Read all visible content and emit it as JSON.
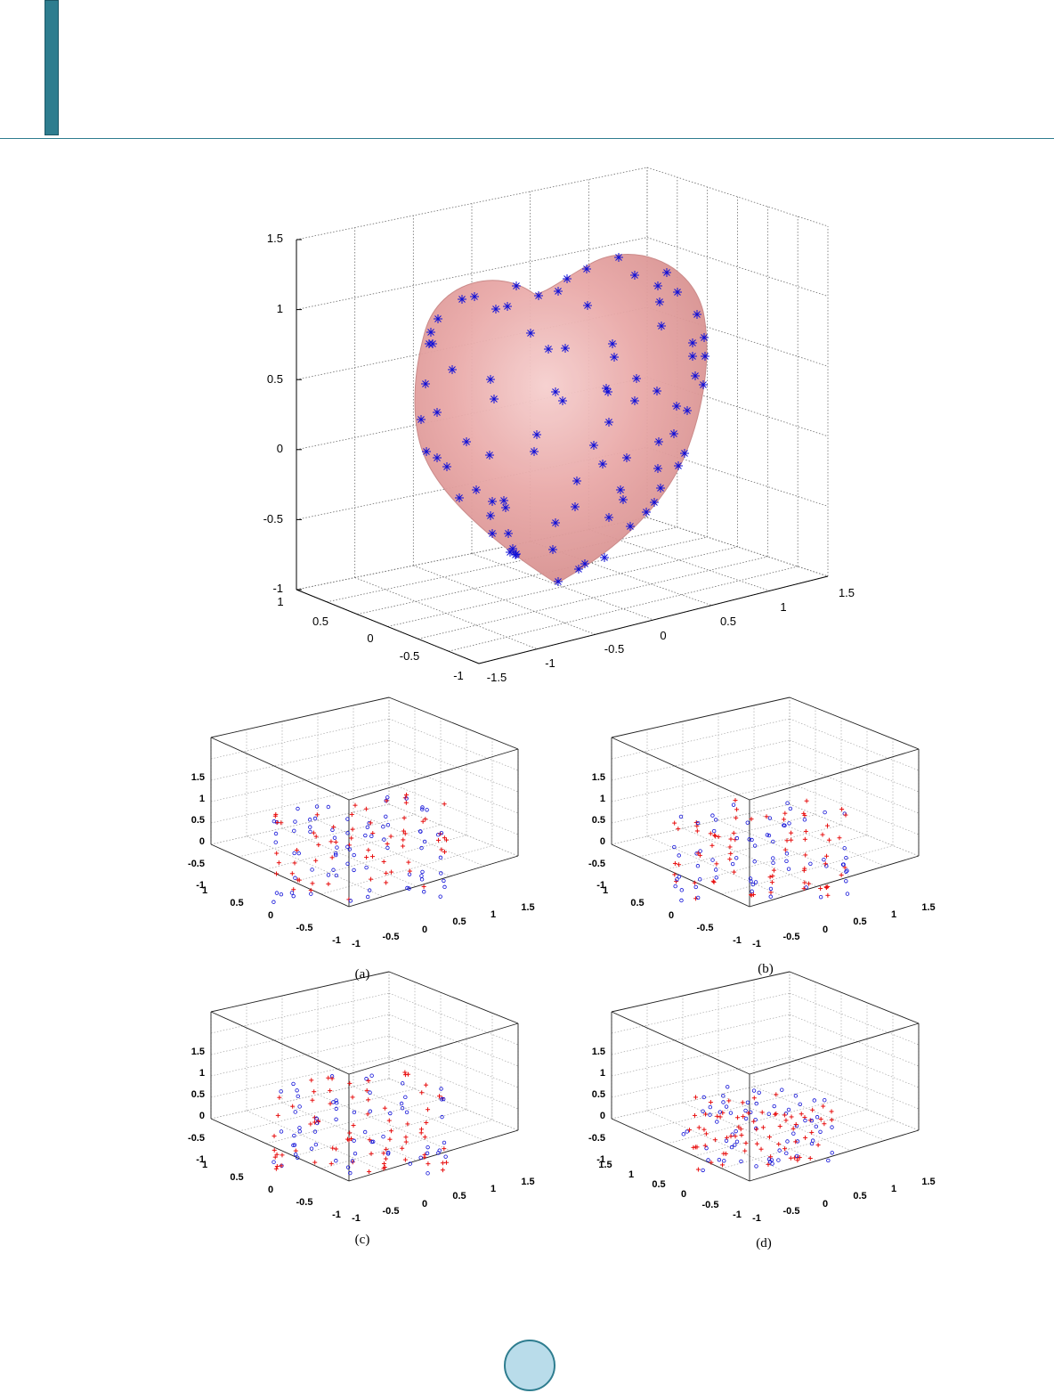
{
  "colors": {
    "accent": "#2e7d8f",
    "surface": "#e8a7a6",
    "marker_blue": "#1010d8",
    "marker_red": "#e81010"
  },
  "chart_data": [
    {
      "id": "heart",
      "type": "scatter",
      "title": "",
      "surface": "heart-shaped surface",
      "marker": "asterisk",
      "z_ticks": [
        "1.5",
        "1",
        "0.5",
        "0",
        "-0.5",
        "-1"
      ],
      "x_ticks": [
        "-1.5",
        "-1",
        "-0.5",
        "0",
        "0.5",
        "1",
        "1.5"
      ],
      "y_ticks": [
        "1",
        "0.5",
        "0",
        "-0.5",
        "-1"
      ],
      "zlim": [
        -1,
        1.5
      ],
      "grid": true
    },
    {
      "id": "a",
      "caption": "(a)",
      "type": "scatter",
      "series": [
        {
          "marker": "plus",
          "color": "red"
        },
        {
          "marker": "circle",
          "color": "blue"
        }
      ],
      "z_ticks": [
        "1.5",
        "1",
        "0.5",
        "0",
        "-0.5",
        "-1"
      ],
      "y_ticks": [
        "1",
        "0.5",
        "0",
        "-0.5",
        "-1"
      ],
      "x_ticks": [
        "-1",
        "-0.5",
        "0",
        "0.5",
        "1",
        "1.5"
      ],
      "grid": true
    },
    {
      "id": "b",
      "caption": "(b)",
      "type": "scatter",
      "series": [
        {
          "marker": "plus",
          "color": "red"
        },
        {
          "marker": "circle",
          "color": "blue"
        }
      ],
      "z_ticks": [
        "1.5",
        "1",
        "0.5",
        "0",
        "-0.5",
        "-1"
      ],
      "y_ticks": [
        "1",
        "0.5",
        "0",
        "-0.5",
        "-1"
      ],
      "x_ticks": [
        "-1",
        "-0.5",
        "0",
        "0.5",
        "1",
        "1.5"
      ],
      "grid": true
    },
    {
      "id": "c",
      "caption": "(c)",
      "type": "scatter",
      "series": [
        {
          "marker": "plus",
          "color": "red"
        },
        {
          "marker": "circle",
          "color": "blue"
        }
      ],
      "z_ticks": [
        "1.5",
        "1",
        "0.5",
        "0",
        "-0.5",
        "-1"
      ],
      "y_ticks": [
        "1",
        "0.5",
        "0",
        "-0.5",
        "-1"
      ],
      "x_ticks": [
        "-1",
        "-0.5",
        "0",
        "0.5",
        "1",
        "1.5"
      ],
      "grid": true
    },
    {
      "id": "d",
      "caption": "(d)",
      "type": "scatter",
      "series": [
        {
          "marker": "plus",
          "color": "red"
        },
        {
          "marker": "circle",
          "color": "blue"
        }
      ],
      "z_ticks": [
        "1.5",
        "1",
        "0.5",
        "0",
        "-0.5",
        "-1"
      ],
      "y_ticks": [
        "1.5",
        "1",
        "0.5",
        "0",
        "-0.5",
        "-1"
      ],
      "x_ticks": [
        "-1",
        "-0.5",
        "0",
        "0.5",
        "1",
        "1.5"
      ],
      "grid": true
    }
  ]
}
